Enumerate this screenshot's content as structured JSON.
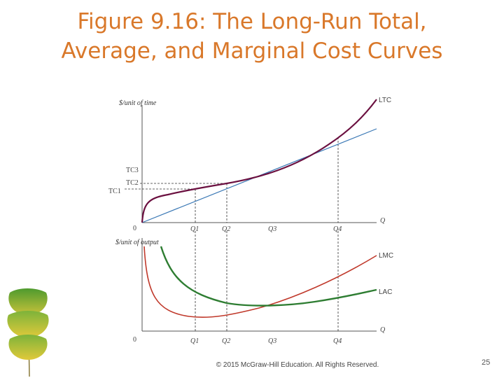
{
  "slide": {
    "title_line1": "Figure 9.16: The Long-Run Total,",
    "title_line2": "Average, and Marginal Cost Curves",
    "copyright": "© 2015 McGraw-Hill Education. All Rights Reserved.",
    "slide_number": "25"
  },
  "colors": {
    "title": "#d9782a",
    "ltc": "#6b1040",
    "ray": "#3a78b5",
    "lmc": "#c0392b",
    "lac": "#2e7d32"
  },
  "top_panel": {
    "y_axis_label": "$/unit of time",
    "x_axis_label": "Q",
    "origin_label": "0",
    "curve_label_ltc": "LTC",
    "y_ticks": [
      "TC3",
      "TC2",
      "TC1"
    ],
    "x_ticks": [
      "Q1",
      "Q2",
      "Q3",
      "Q4"
    ]
  },
  "bottom_panel": {
    "y_axis_label": "$/unit of output",
    "x_axis_label": "Q",
    "origin_label": "0",
    "curve_label_lmc": "LMC",
    "curve_label_lac": "LAC",
    "x_ticks": [
      "Q1",
      "Q2",
      "Q3",
      "Q4"
    ]
  }
}
